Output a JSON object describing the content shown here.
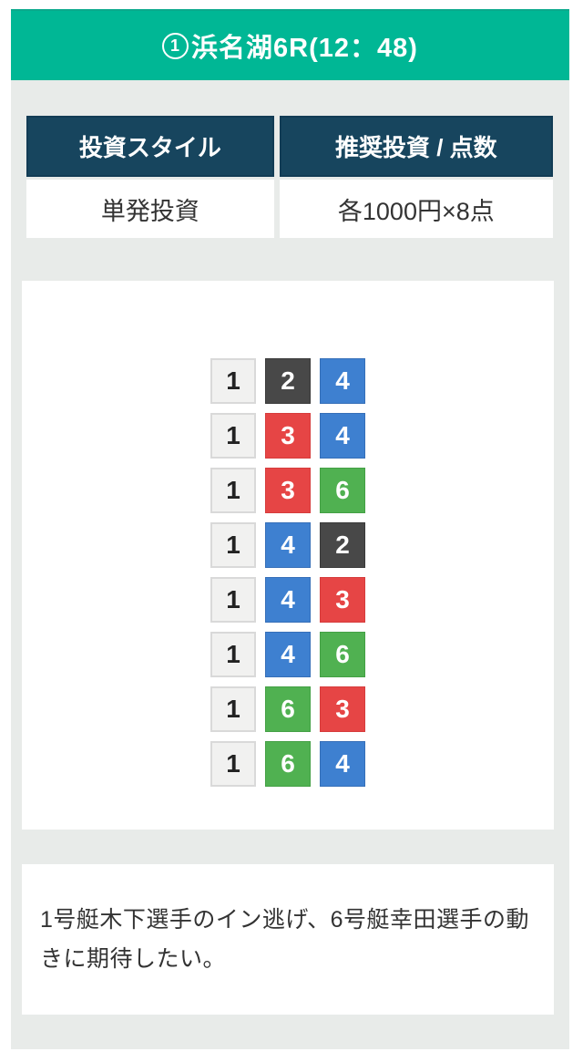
{
  "header": {
    "badge": "1",
    "title": "浜名湖6R(12：48)"
  },
  "invest_table": {
    "columns": [
      "投資スタイル",
      "推奨投資 / 点数"
    ],
    "row": [
      "単発投資",
      "各1000円×8点"
    ]
  },
  "bets": {
    "rows": [
      [
        1,
        2,
        4
      ],
      [
        1,
        3,
        4
      ],
      [
        1,
        3,
        6
      ],
      [
        1,
        4,
        2
      ],
      [
        1,
        4,
        3
      ],
      [
        1,
        4,
        6
      ],
      [
        1,
        6,
        3
      ],
      [
        1,
        6,
        4
      ]
    ]
  },
  "comment": "1号艇木下選手のイン逃げ、6号艇幸田選手の動きに期待したい。",
  "colors": {
    "accent_green": "#00b795",
    "table_header_navy": "#17455e",
    "body_gray": "#e8ebe9",
    "boat1_white": "#f1f1f0",
    "boat2_black": "#484848",
    "boat3_red": "#e64545",
    "boat4_blue": "#3e80d0",
    "boat6_green": "#50b151"
  }
}
